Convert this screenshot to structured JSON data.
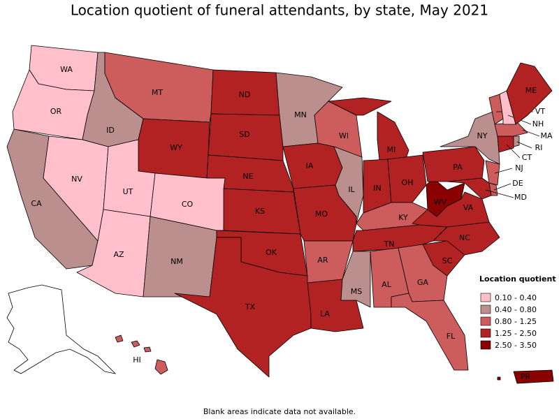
{
  "title": "Location quotient of funeral attendants, by state, May 2021",
  "legend": {
    "title": "Location quotient",
    "items": [
      {
        "label": "0.10 - 0.40",
        "color": "#ffc0cb"
      },
      {
        "label": "0.40 - 0.80",
        "color": "#bc8f8f"
      },
      {
        "label": "0.80 - 1.25",
        "color": "#cd5c5c"
      },
      {
        "label": "1.25 - 2.50",
        "color": "#b22222"
      },
      {
        "label": "2.50 - 3.50",
        "color": "#8b0000"
      }
    ]
  },
  "states": [
    {
      "label": "WA",
      "class": 0
    },
    {
      "label": "OR",
      "class": 0
    },
    {
      "label": "CA",
      "class": 1
    },
    {
      "label": "NV",
      "class": 0
    },
    {
      "label": "ID",
      "class": 1
    },
    {
      "label": "MT",
      "class": 2
    },
    {
      "label": "WY",
      "class": 3
    },
    {
      "label": "UT",
      "class": 0
    },
    {
      "label": "CO",
      "class": 0
    },
    {
      "label": "AZ",
      "class": 0
    },
    {
      "label": "NM",
      "class": 1
    },
    {
      "label": "ND",
      "class": 3
    },
    {
      "label": "SD",
      "class": 3
    },
    {
      "label": "NE",
      "class": 3
    },
    {
      "label": "KS",
      "class": 3
    },
    {
      "label": "OK",
      "class": 3
    },
    {
      "label": "TX",
      "class": 3
    },
    {
      "label": "MN",
      "class": 1
    },
    {
      "label": "IA",
      "class": 3
    },
    {
      "label": "MO",
      "class": 3
    },
    {
      "label": "AR",
      "class": 2
    },
    {
      "label": "LA",
      "class": 3
    },
    {
      "label": "WI",
      "class": 2
    },
    {
      "label": "IL",
      "class": 1
    },
    {
      "label": "MI",
      "class": 3
    },
    {
      "label": "IN",
      "class": 3
    },
    {
      "label": "OH",
      "class": 3
    },
    {
      "label": "KY",
      "class": 2
    },
    {
      "label": "TN",
      "class": 3
    },
    {
      "label": "MS",
      "class": 1
    },
    {
      "label": "AL",
      "class": 2
    },
    {
      "label": "GA",
      "class": 2
    },
    {
      "label": "FL",
      "class": 2
    },
    {
      "label": "SC",
      "class": 3
    },
    {
      "label": "NC",
      "class": 3
    },
    {
      "label": "VA",
      "class": 3
    },
    {
      "label": "WV",
      "class": 4
    },
    {
      "label": "PA",
      "class": 3
    },
    {
      "label": "NY",
      "class": 1
    },
    {
      "label": "NJ",
      "class": 2
    },
    {
      "label": "DE",
      "class": 2
    },
    {
      "label": "MD",
      "class": 3
    },
    {
      "label": "CT",
      "class": 3
    },
    {
      "label": "RI",
      "class": 1
    },
    {
      "label": "MA",
      "class": 2
    },
    {
      "label": "VT",
      "class": 2
    },
    {
      "label": "NH",
      "class": 0
    },
    {
      "label": "ME",
      "class": 3
    },
    {
      "label": "HI",
      "class": 2
    },
    {
      "label": "PR",
      "class": 4
    }
  ],
  "footnote": "Blank areas indicate data not available."
}
